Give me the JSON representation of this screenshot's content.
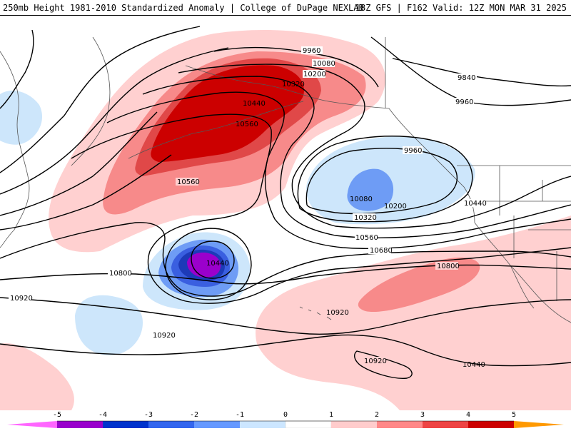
{
  "header": {
    "title": "250mb Height 1981-2010 Standardized Anomaly | College of DuPage NEXLAB",
    "valid": "18Z GFS | F162 Valid: 12Z MON MAR 31 2025"
  },
  "contour_labels": [
    "9960",
    "10080",
    "10200",
    "10320",
    "10440",
    "10560",
    "9840",
    "9960",
    "9960",
    "10080",
    "10200",
    "10320",
    "10440",
    "10560",
    "10680",
    "10800",
    "10800",
    "10920",
    "10920",
    "10920",
    "10920",
    "10440",
    "10560"
  ],
  "colorbar": {
    "ticks": [
      "-5",
      "-4",
      "-3",
      "-2",
      "-1",
      "0",
      "1",
      "2",
      "3",
      "4",
      "5"
    ],
    "colors": [
      "#ff66ff",
      "#9900cc",
      "#0033cc",
      "#3366ee",
      "#6699ff",
      "#cce6ff",
      "#ffffff",
      "#ffcccc",
      "#ff8888",
      "#ee4444",
      "#cc0000",
      "#ff9900",
      "#ffcc33"
    ]
  },
  "anomaly_colors": {
    "pos1": "#ffd0d0",
    "pos2": "#f78a8a",
    "pos3": "#e04848",
    "pos4": "#cc0000",
    "neg1": "#cde6fb",
    "neg2": "#6e9cf5",
    "neg3": "#3a5fe0",
    "neg4": "#1d3ab8",
    "neg5": "#9b00cc"
  }
}
